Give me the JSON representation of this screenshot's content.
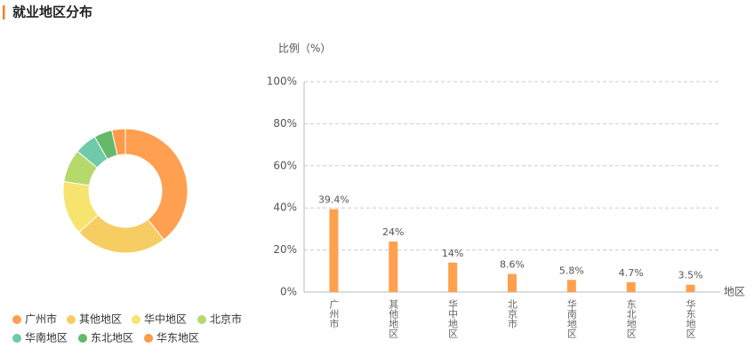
{
  "header": {
    "title": "就业地区分布"
  },
  "chart_data": [
    {
      "type": "pie",
      "donut": true,
      "categories": [
        "广州市",
        "其他地区",
        "华中地区",
        "北京市",
        "华南地区",
        "东北地区",
        "华东地区"
      ],
      "values": [
        39.4,
        24,
        14,
        8.6,
        5.8,
        4.7,
        3.5
      ],
      "colors": [
        "#ff9f50",
        "#f5cd62",
        "#f7e46e",
        "#b6d96e",
        "#6fcaa8",
        "#66b96a",
        "#ff9a4a"
      ]
    },
    {
      "type": "bar",
      "y_label": "比例（%）",
      "x_label": "地区",
      "categories": [
        "广州市",
        "其他地区",
        "华中地区",
        "北京市",
        "华南地区",
        "东北地区",
        "华东地区"
      ],
      "values": [
        39.4,
        24,
        14,
        8.6,
        5.8,
        4.7,
        3.5
      ],
      "value_labels": [
        "39.4%",
        "24%",
        "14%",
        "8.6%",
        "5.8%",
        "4.7%",
        "3.5%"
      ],
      "color": "#ffa04f",
      "ylim": [
        0,
        100
      ],
      "yticks": [
        {
          "value": 0,
          "label": "0%"
        },
        {
          "value": 20,
          "label": "20%"
        },
        {
          "value": 40,
          "label": "40%"
        },
        {
          "value": 60,
          "label": "60%"
        },
        {
          "value": 80,
          "label": "80%"
        },
        {
          "value": 100,
          "label": "100%"
        }
      ],
      "grid": true
    }
  ]
}
